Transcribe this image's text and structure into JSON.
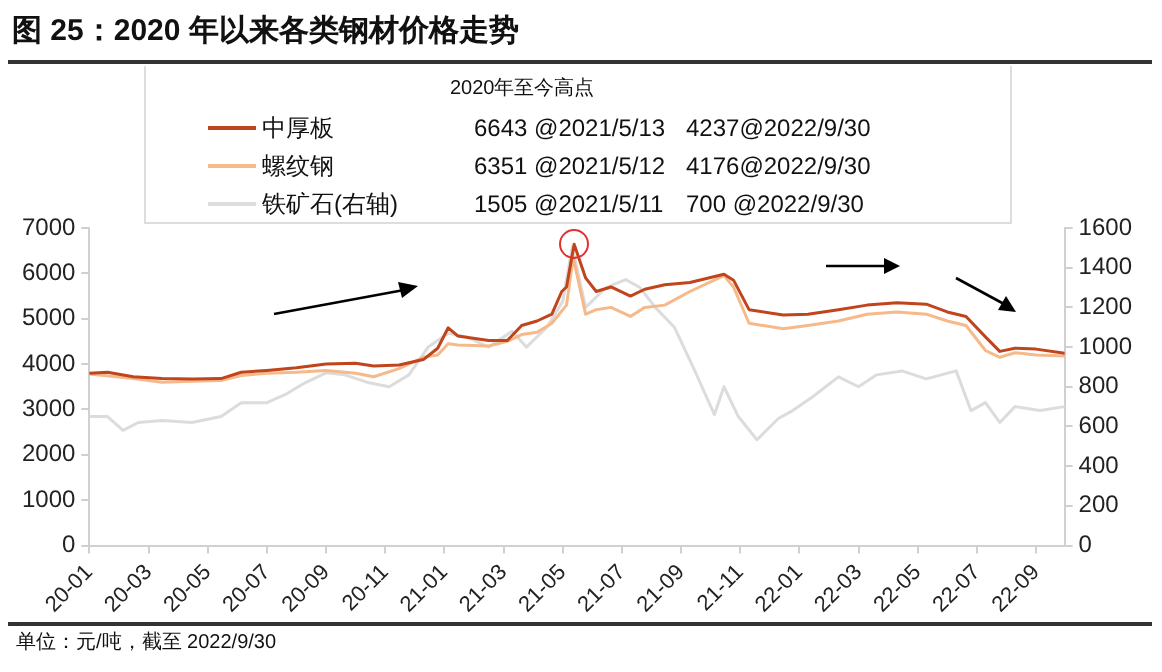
{
  "chart_data": {
    "type": "line",
    "title": "图 25：2020 年以来各类钢材价格走势",
    "xlim": [
      "2020-01-01",
      "2022-09-30"
    ],
    "xticks": [
      {
        "value": "2020-01",
        "label": "20-01"
      },
      {
        "value": "2020-03",
        "label": "20-03"
      },
      {
        "value": "2020-05",
        "label": "20-05"
      },
      {
        "value": "2020-07",
        "label": "20-07"
      },
      {
        "value": "2020-09",
        "label": "20-09"
      },
      {
        "value": "2020-11",
        "label": "20-11"
      },
      {
        "value": "2021-01",
        "label": "21-01"
      },
      {
        "value": "2021-03",
        "label": "21-03"
      },
      {
        "value": "2021-05",
        "label": "21-05"
      },
      {
        "value": "2021-07",
        "label": "21-07"
      },
      {
        "value": "2021-09",
        "label": "21-09"
      },
      {
        "value": "2021-11",
        "label": "21-11"
      },
      {
        "value": "2022-01",
        "label": "22-01"
      },
      {
        "value": "2022-03",
        "label": "22-03"
      },
      {
        "value": "2022-05",
        "label": "22-05"
      },
      {
        "value": "2022-07",
        "label": "22-07"
      },
      {
        "value": "2022-09",
        "label": "22-09"
      }
    ],
    "ylim": [
      0,
      7000
    ],
    "yticks": [
      0,
      1000,
      2000,
      3000,
      4000,
      5000,
      6000,
      7000
    ],
    "y2lim": [
      0,
      1600
    ],
    "y2ticks": [
      0,
      200,
      400,
      600,
      800,
      1000,
      1200,
      1400,
      1600
    ],
    "grid": false,
    "legend": "top",
    "marker": "none",
    "line_style": "solid",
    "annotations": [
      "2020年至今高点",
      "6643 @2021/5/13",
      "4237@2022/9/30",
      "6351 @2021/5/12",
      "4176@2022/9/30",
      "1505 @2021/5/11",
      "700 @2022/9/30",
      "单位：元/吨，截至 2022/9/30"
    ],
    "series": [
      {
        "name": "中厚板",
        "color": "#c0441c",
        "x": [
          "2020-01-01",
          "2020-01-20",
          "2020-02-15",
          "2020-03-15",
          "2020-04-15",
          "2020-05-15",
          "2020-06-05",
          "2020-07-01",
          "2020-08-01",
          "2020-09-01",
          "2020-10-01",
          "2020-10-20",
          "2020-11-15",
          "2020-12-10",
          "2020-12-25",
          "2021-01-05",
          "2021-01-15",
          "2021-02-15",
          "2021-03-05",
          "2021-03-20",
          "2021-04-05",
          "2021-04-20",
          "2021-04-30",
          "2021-05-05",
          "2021-05-13",
          "2021-05-25",
          "2021-06-05",
          "2021-06-20",
          "2021-07-10",
          "2021-07-25",
          "2021-08-15",
          "2021-09-10",
          "2021-10-15",
          "2021-10-25",
          "2021-11-10",
          "2021-12-15",
          "2022-01-10",
          "2022-02-10",
          "2022-03-10",
          "2022-04-10",
          "2022-05-10",
          "2022-06-01",
          "2022-06-20",
          "2022-07-10",
          "2022-07-25",
          "2022-08-10",
          "2022-09-01",
          "2022-09-30"
        ],
        "values": [
          3800,
          3820,
          3720,
          3680,
          3670,
          3680,
          3820,
          3860,
          3920,
          4000,
          4020,
          3960,
          3980,
          4100,
          4350,
          4800,
          4620,
          4520,
          4520,
          4850,
          4950,
          5100,
          5600,
          5700,
          6643,
          5900,
          5600,
          5700,
          5500,
          5650,
          5750,
          5800,
          5980,
          5850,
          5200,
          5080,
          5100,
          5200,
          5300,
          5350,
          5320,
          5150,
          5050,
          4600,
          4280,
          4350,
          4330,
          4237
        ]
      },
      {
        "name": "螺纹钢",
        "color": "#f5b98a",
        "x": [
          "2020-01-01",
          "2020-02-15",
          "2020-03-15",
          "2020-04-15",
          "2020-05-15",
          "2020-06-05",
          "2020-07-01",
          "2020-08-01",
          "2020-09-01",
          "2020-10-01",
          "2020-10-20",
          "2020-11-15",
          "2020-12-10",
          "2020-12-25",
          "2021-01-05",
          "2021-01-15",
          "2021-02-15",
          "2021-03-05",
          "2021-03-20",
          "2021-04-05",
          "2021-04-20",
          "2021-05-05",
          "2021-05-12",
          "2021-05-25",
          "2021-06-05",
          "2021-06-20",
          "2021-07-10",
          "2021-07-25",
          "2021-08-15",
          "2021-09-10",
          "2021-10-15",
          "2021-10-25",
          "2021-11-10",
          "2021-12-15",
          "2022-01-10",
          "2022-02-10",
          "2022-03-10",
          "2022-04-10",
          "2022-05-10",
          "2022-06-01",
          "2022-06-20",
          "2022-07-10",
          "2022-07-25",
          "2022-08-10",
          "2022-09-01",
          "2022-09-30"
        ],
        "values": [
          3780,
          3680,
          3600,
          3620,
          3640,
          3750,
          3800,
          3820,
          3860,
          3800,
          3720,
          3900,
          4150,
          4200,
          4450,
          4420,
          4400,
          4500,
          4650,
          4700,
          4900,
          5300,
          6351,
          5100,
          5200,
          5250,
          5050,
          5250,
          5300,
          5600,
          5950,
          5700,
          4900,
          4780,
          4850,
          4950,
          5100,
          5150,
          5100,
          4950,
          4850,
          4300,
          4150,
          4250,
          4200,
          4176
        ]
      },
      {
        "name": "铁矿石(右轴)",
        "color": "#dcdcdc",
        "axis": "y2",
        "x": [
          "2020-01-01",
          "2020-01-20",
          "2020-02-05",
          "2020-02-20",
          "2020-03-15",
          "2020-04-15",
          "2020-05-15",
          "2020-06-05",
          "2020-07-01",
          "2020-07-20",
          "2020-08-10",
          "2020-09-01",
          "2020-09-20",
          "2020-10-15",
          "2020-11-05",
          "2020-11-25",
          "2020-12-15",
          "2021-01-05",
          "2021-01-25",
          "2021-02-15",
          "2021-03-10",
          "2021-03-25",
          "2021-04-15",
          "2021-05-01",
          "2021-05-11",
          "2021-05-25",
          "2021-06-15",
          "2021-07-05",
          "2021-07-20",
          "2021-08-05",
          "2021-08-25",
          "2021-09-15",
          "2021-10-05",
          "2021-10-15",
          "2021-10-30",
          "2021-11-18",
          "2021-12-10",
          "2021-12-25",
          "2022-01-15",
          "2022-02-10",
          "2022-03-01",
          "2022-03-20",
          "2022-04-15",
          "2022-05-10",
          "2022-06-10",
          "2022-06-25",
          "2022-07-10",
          "2022-07-25",
          "2022-08-10",
          "2022-09-05",
          "2022-09-30"
        ],
        "values": [
          650,
          650,
          580,
          620,
          630,
          620,
          650,
          720,
          720,
          760,
          820,
          870,
          860,
          820,
          800,
          860,
          1000,
          1070,
          1050,
          1000,
          1080,
          1000,
          1100,
          1230,
          1505,
          1200,
          1300,
          1340,
          1300,
          1200,
          1100,
          880,
          660,
          800,
          650,
          533,
          640,
          680,
          750,
          850,
          800,
          860,
          880,
          840,
          880,
          680,
          720,
          620,
          700,
          680,
          700
        ]
      }
    ]
  }
}
